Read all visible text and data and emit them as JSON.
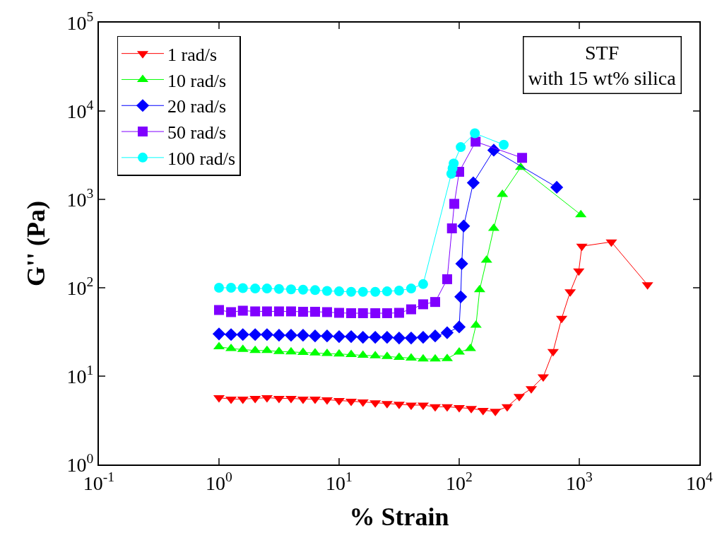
{
  "chart_data": {
    "type": "line",
    "xlabel": "% Strain",
    "ylabel": "G'' (Pa)",
    "log": "xy",
    "grid": false,
    "legend": "top left",
    "line_style": "solid",
    "annotations": [
      "STF\nwith 15 wt% silica"
    ],
    "xlim": [
      0.1,
      10000
    ],
    "ylim": [
      1,
      100000
    ],
    "xticks": [
      {
        "value": 0.1,
        "label": "10$^{-1}$"
      },
      {
        "value": 1,
        "label": "10$^{0}$"
      },
      {
        "value": 10,
        "label": "10$^{1}$"
      },
      {
        "value": 100,
        "label": "10$^{2}$"
      },
      {
        "value": 1000,
        "label": "10$^{3}$"
      },
      {
        "value": 10000,
        "label": "10$^{4}$"
      }
    ],
    "yticks": [
      {
        "value": 1,
        "label": "10$^{0}$"
      },
      {
        "value": 10,
        "label": "10$^{1}$"
      },
      {
        "value": 100,
        "label": "10$^{2}$"
      },
      {
        "value": 1000,
        "label": "10$^{3}$"
      },
      {
        "value": 10000,
        "label": "10$^{4}$"
      },
      {
        "value": 100000,
        "label": "10$^{5}$"
      }
    ],
    "series": [
      {
        "name": "1 rad/s",
        "color": "#ff0000",
        "marker": "triangle-down",
        "x": [
          1,
          1.26,
          1.58,
          2,
          2.51,
          3.16,
          3.98,
          5.01,
          6.31,
          7.94,
          10,
          12.6,
          15.8,
          20,
          25.1,
          31.6,
          39.8,
          50.1,
          63.1,
          79.4,
          100,
          126,
          158,
          200,
          251,
          316,
          398,
          501,
          605,
          713,
          840,
          990,
          1050,
          1850,
          3700
        ],
        "values": [
          5.7,
          5.5,
          5.5,
          5.6,
          5.7,
          5.6,
          5.6,
          5.5,
          5.5,
          5.4,
          5.3,
          5.2,
          5.1,
          5.0,
          4.9,
          4.8,
          4.7,
          4.7,
          4.5,
          4.5,
          4.4,
          4.3,
          4.1,
          4.0,
          4.5,
          5.9,
          7.2,
          9.8,
          19,
          45,
          90,
          155,
          295,
          330,
          108
        ]
      },
      {
        "name": "10 rad/s",
        "color": "#00ff00",
        "marker": "triangle",
        "x": [
          1,
          1.26,
          1.58,
          2,
          2.51,
          3.16,
          3.98,
          5.01,
          6.31,
          7.94,
          10,
          12.6,
          15.8,
          20,
          25.1,
          31.6,
          39.8,
          50.1,
          63.1,
          79.4,
          100,
          124,
          138,
          148,
          169,
          194,
          229,
          325,
          1030
        ],
        "values": [
          21.5,
          20.5,
          20,
          19.5,
          19.5,
          19,
          18.8,
          18.5,
          18.3,
          18,
          17.8,
          17.5,
          17.2,
          17,
          16.7,
          16.3,
          16,
          15.6,
          15.6,
          15.8,
          18.7,
          20.5,
          37.6,
          95,
          205,
          470,
          1140,
          2300,
          670
        ]
      },
      {
        "name": "20 rad/s",
        "color": "#0000ff",
        "marker": "diamond",
        "x": [
          1,
          1.26,
          1.58,
          2,
          2.51,
          3.16,
          3.98,
          5.01,
          6.31,
          7.94,
          10,
          12.6,
          15.8,
          20,
          25.1,
          31.6,
          39.8,
          50.1,
          63.1,
          79.4,
          100,
          103,
          105,
          109,
          131,
          194,
          649
        ],
        "values": [
          30,
          29.5,
          29.5,
          29.5,
          29.5,
          29,
          29,
          29,
          28.5,
          28.5,
          28,
          28,
          27.5,
          27.5,
          27.5,
          27,
          27,
          27.5,
          28.5,
          31,
          36,
          79,
          187,
          500,
          1540,
          3600,
          1370
        ]
      },
      {
        "name": "50 rad/s",
        "color": "#8000ff",
        "marker": "square",
        "x": [
          1,
          1.26,
          1.58,
          2,
          2.51,
          3.16,
          3.98,
          5.01,
          6.31,
          7.94,
          10,
          12.6,
          15.8,
          20,
          25.1,
          31.6,
          39.8,
          50.1,
          63.1,
          79.4,
          87,
          91,
          100,
          137,
          334
        ],
        "values": [
          56,
          53,
          55,
          54,
          54,
          54,
          54,
          53.5,
          53.5,
          53,
          52,
          51.5,
          51.5,
          51.5,
          51.5,
          52,
          57,
          65,
          69,
          125,
          470,
          890,
          2050,
          4500,
          2950
        ]
      },
      {
        "name": "100 rad/s",
        "color": "#00ffff",
        "marker": "circle",
        "x": [
          1,
          1.26,
          1.58,
          2,
          2.51,
          3.16,
          3.98,
          5.01,
          6.31,
          7.94,
          10,
          12.6,
          15.8,
          20,
          25.1,
          31.6,
          39.8,
          50.1,
          86,
          88,
          90,
          103,
          135,
          235
        ],
        "values": [
          100,
          100,
          99,
          98,
          98,
          97,
          96,
          95,
          94,
          92,
          91,
          90,
          90,
          90,
          91,
          93,
          98,
          110,
          1950,
          2250,
          2550,
          3900,
          5600,
          4150
        ]
      }
    ]
  }
}
